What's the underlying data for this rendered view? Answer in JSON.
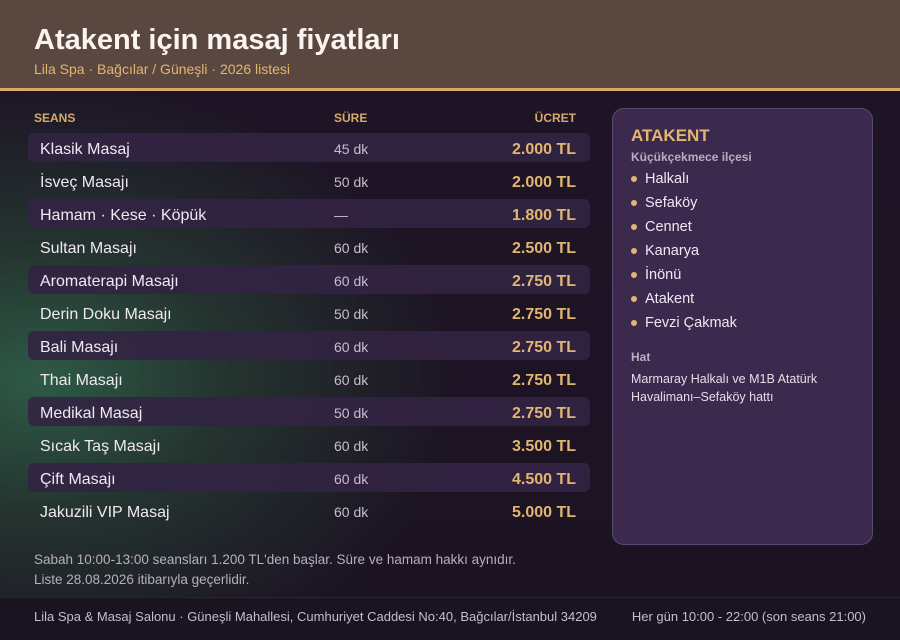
{
  "header": {
    "title": "Atakent için masaj fiyatları",
    "subtitle": "Lila Spa · Bağcılar / Güneşli · 2026 listesi"
  },
  "table": {
    "columns": [
      "SEANS",
      "SÜRE",
      "ÜCRET"
    ],
    "rows": [
      [
        "Klasik Masaj",
        "45 dk",
        "2.000 TL"
      ],
      [
        "İsveç Masajı",
        "50 dk",
        "2.000 TL"
      ],
      [
        "Hamam · Kese · Köpük",
        "—",
        "1.800 TL"
      ],
      [
        "Sultan Masajı",
        "60 dk",
        "2.500 TL"
      ],
      [
        "Aromaterapi Masajı",
        "60 dk",
        "2.750 TL"
      ],
      [
        "Derin Doku Masajı",
        "50 dk",
        "2.750 TL"
      ],
      [
        "Bali Masajı",
        "60 dk",
        "2.750 TL"
      ],
      [
        "Thai Masajı",
        "60 dk",
        "2.750 TL"
      ],
      [
        "Medikal Masaj",
        "50 dk",
        "2.750 TL"
      ],
      [
        "Sıcak Taş Masajı",
        "60 dk",
        "3.500 TL"
      ],
      [
        "Çift Masajı",
        "60 dk",
        "4.500 TL"
      ],
      [
        "Jakuzili VIP Masaj",
        "60 dk",
        "5.000 TL"
      ]
    ]
  },
  "notes": [
    "Sabah 10:00-13:00 seansları 1.200 TL'den başlar. Süre ve hamam hakkı aynıdır.",
    "Liste 28.08.2026 itibarıyla geçerlidir."
  ],
  "panel": {
    "title": "ATAKENT",
    "subtitle": "Küçükçekmece ilçesi",
    "districts": [
      "Halkalı",
      "Sefaköy",
      "Cennet",
      "Kanarya",
      "İnönü",
      "Atakent",
      "Fevzi Çakmak"
    ],
    "transport_title": "Hat",
    "transport_text": "Marmaray Halkalı ve M1B Atatürk Havalimanı–Sefaköy hattı"
  },
  "footer": {
    "address": "Lila Spa & Masaj Salonu · Güneşli Mahallesi, Cumhuriyet Caddesi No:40, Bağcılar/İstanbul 34209",
    "hours": "Her gün 10:00 - 22:00 (son seans 21:00)"
  }
}
